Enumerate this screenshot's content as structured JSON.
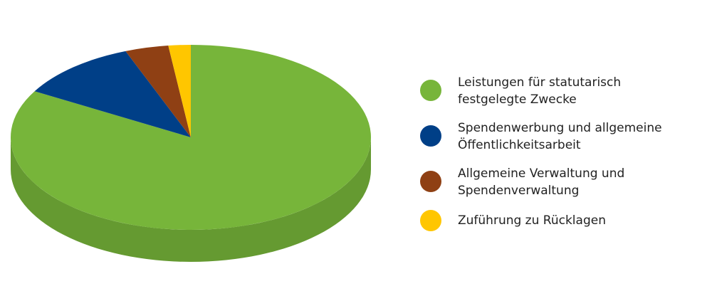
{
  "chart_data": {
    "type": "pie",
    "style": "3d",
    "start": "top",
    "direction": "clockwise",
    "legend_position": "right",
    "series": [
      {
        "name": "Leistungen für statutarisch festgelegte Zwecke",
        "value": 83.3,
        "color": "#77b53a",
        "label_lines": [
          "Leistungen für statutarisch",
          "festgelegte Zwecke"
        ]
      },
      {
        "name": "Spendenwerbung und allgemeine Öffentlichkeitsarbeit",
        "value": 10.8,
        "color": "#003f87",
        "label_lines": [
          "Spendenwerbung und allgemeine",
          "Öffentlichkeitsarbeit"
        ]
      },
      {
        "name": "Allgemeine Verwaltung und Spendenverwaltung",
        "value": 3.9,
        "color": "#8f4014",
        "label_lines": [
          "Allgemeine Verwaltung und",
          "Spendenverwaltung"
        ]
      },
      {
        "name": "Zuführung zu Rücklagen",
        "value": 2.0,
        "color": "#ffc600",
        "label_lines": [
          "Zuführung zu Rücklagen"
        ]
      }
    ],
    "draw_order": [
      3,
      2,
      1,
      0
    ]
  }
}
